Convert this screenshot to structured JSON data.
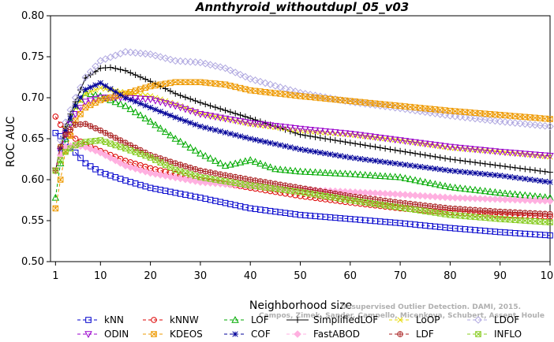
{
  "chart_data": {
    "type": "line",
    "title": "Annthyroid_withoutdupl_05_v03",
    "xlabel": "Neighborhood size",
    "ylabel": "ROC AUC",
    "xlim": [
      0,
      100
    ],
    "ylim": [
      0.5,
      0.8
    ],
    "x_ticks": [
      1,
      10,
      20,
      30,
      40,
      50,
      60,
      70,
      80,
      90,
      100
    ],
    "y_ticks": [
      "0.50",
      "0.55",
      "0.60",
      "0.65",
      "0.70",
      "0.75",
      "0.80"
    ],
    "grid": false,
    "legend_position": "bottom",
    "series": [
      {
        "name": "kNN",
        "color": "#0000cc",
        "marker": "square",
        "dash": "dashed",
        "points": [
          [
            1,
            0.657
          ],
          [
            2,
            0.653
          ],
          [
            3,
            0.646
          ],
          [
            5,
            0.633
          ],
          [
            7,
            0.62
          ],
          [
            10,
            0.609
          ],
          [
            15,
            0.599
          ],
          [
            20,
            0.59
          ],
          [
            30,
            0.578
          ],
          [
            40,
            0.565
          ],
          [
            50,
            0.557
          ],
          [
            60,
            0.552
          ],
          [
            70,
            0.547
          ],
          [
            80,
            0.541
          ],
          [
            90,
            0.536
          ],
          [
            100,
            0.532
          ]
        ]
      },
      {
        "name": "kNNW",
        "color": "#dd0000",
        "marker": "circle",
        "dash": "dashed",
        "points": [
          [
            1,
            0.677
          ],
          [
            2,
            0.667
          ],
          [
            3,
            0.66
          ],
          [
            5,
            0.65
          ],
          [
            7,
            0.643
          ],
          [
            10,
            0.635
          ],
          [
            15,
            0.623
          ],
          [
            20,
            0.614
          ],
          [
            30,
            0.6
          ],
          [
            40,
            0.59
          ],
          [
            50,
            0.58
          ],
          [
            60,
            0.572
          ],
          [
            70,
            0.565
          ],
          [
            80,
            0.56
          ],
          [
            90,
            0.557
          ],
          [
            100,
            0.555
          ]
        ]
      },
      {
        "name": "LOF",
        "color": "#00aa00",
        "marker": "triangle-up",
        "dash": "dashed",
        "points": [
          [
            1,
            0.578
          ],
          [
            2,
            0.62
          ],
          [
            3,
            0.65
          ],
          [
            5,
            0.69
          ],
          [
            7,
            0.706
          ],
          [
            10,
            0.702
          ],
          [
            15,
            0.69
          ],
          [
            20,
            0.671
          ],
          [
            25,
            0.65
          ],
          [
            30,
            0.632
          ],
          [
            35,
            0.617
          ],
          [
            40,
            0.624
          ],
          [
            45,
            0.613
          ],
          [
            50,
            0.61
          ],
          [
            60,
            0.607
          ],
          [
            70,
            0.603
          ],
          [
            80,
            0.591
          ],
          [
            90,
            0.584
          ],
          [
            100,
            0.578
          ]
        ]
      },
      {
        "name": "SimplifiedLOF",
        "color": "#000000",
        "marker": "plus",
        "dash": "solid",
        "points": [
          [
            1,
            0.611
          ],
          [
            2,
            0.64
          ],
          [
            3,
            0.665
          ],
          [
            5,
            0.695
          ],
          [
            7,
            0.724
          ],
          [
            10,
            0.736
          ],
          [
            12,
            0.737
          ],
          [
            15,
            0.733
          ],
          [
            20,
            0.72
          ],
          [
            25,
            0.705
          ],
          [
            30,
            0.694
          ],
          [
            40,
            0.675
          ],
          [
            50,
            0.655
          ],
          [
            60,
            0.645
          ],
          [
            70,
            0.635
          ],
          [
            80,
            0.625
          ],
          [
            90,
            0.617
          ],
          [
            100,
            0.609
          ]
        ]
      },
      {
        "name": "LoOP",
        "color": "#e6d800",
        "marker": "cross",
        "dash": "dashed",
        "points": [
          [
            1,
            0.612
          ],
          [
            2,
            0.64
          ],
          [
            3,
            0.662
          ],
          [
            5,
            0.688
          ],
          [
            7,
            0.705
          ],
          [
            10,
            0.712
          ],
          [
            15,
            0.706
          ],
          [
            20,
            0.702
          ],
          [
            25,
            0.692
          ],
          [
            30,
            0.681
          ],
          [
            40,
            0.668
          ],
          [
            50,
            0.66
          ],
          [
            60,
            0.655
          ],
          [
            70,
            0.648
          ],
          [
            80,
            0.639
          ],
          [
            90,
            0.634
          ],
          [
            100,
            0.628
          ]
        ]
      },
      {
        "name": "LDOF",
        "color": "#b0a8e0",
        "marker": "diamond",
        "dash": "dashed",
        "points": [
          [
            1,
            0.611
          ],
          [
            2,
            0.648
          ],
          [
            3,
            0.67
          ],
          [
            5,
            0.7
          ],
          [
            7,
            0.725
          ],
          [
            10,
            0.745
          ],
          [
            15,
            0.756
          ],
          [
            20,
            0.753
          ],
          [
            25,
            0.745
          ],
          [
            30,
            0.743
          ],
          [
            35,
            0.736
          ],
          [
            40,
            0.723
          ],
          [
            50,
            0.706
          ],
          [
            60,
            0.695
          ],
          [
            70,
            0.687
          ],
          [
            80,
            0.678
          ],
          [
            90,
            0.671
          ],
          [
            100,
            0.665
          ]
        ]
      },
      {
        "name": "ODIN",
        "color": "#9900cc",
        "marker": "triangle-down",
        "dash": "dashed",
        "points": [
          [
            1,
            0.611
          ],
          [
            2,
            0.635
          ],
          [
            3,
            0.655
          ],
          [
            5,
            0.68
          ],
          [
            7,
            0.695
          ],
          [
            10,
            0.7
          ],
          [
            15,
            0.7
          ],
          [
            20,
            0.698
          ],
          [
            25,
            0.69
          ],
          [
            30,
            0.68
          ],
          [
            40,
            0.669
          ],
          [
            50,
            0.662
          ],
          [
            60,
            0.656
          ],
          [
            70,
            0.648
          ],
          [
            80,
            0.64
          ],
          [
            90,
            0.634
          ],
          [
            100,
            0.629
          ]
        ]
      },
      {
        "name": "KDEOS",
        "color": "#ee9900",
        "marker": "square-x",
        "dash": "dashed",
        "points": [
          [
            1,
            0.565
          ],
          [
            2,
            0.6
          ],
          [
            3,
            0.635
          ],
          [
            5,
            0.672
          ],
          [
            7,
            0.688
          ],
          [
            10,
            0.697
          ],
          [
            15,
            0.705
          ],
          [
            20,
            0.714
          ],
          [
            25,
            0.719
          ],
          [
            30,
            0.719
          ],
          [
            35,
            0.716
          ],
          [
            40,
            0.709
          ],
          [
            50,
            0.702
          ],
          [
            60,
            0.696
          ],
          [
            70,
            0.69
          ],
          [
            80,
            0.684
          ],
          [
            90,
            0.679
          ],
          [
            100,
            0.674
          ]
        ]
      },
      {
        "name": "COF",
        "color": "#000099",
        "marker": "star",
        "dash": "dashed",
        "points": [
          [
            1,
            0.611
          ],
          [
            2,
            0.638
          ],
          [
            3,
            0.66
          ],
          [
            5,
            0.69
          ],
          [
            7,
            0.71
          ],
          [
            10,
            0.718
          ],
          [
            15,
            0.7
          ],
          [
            20,
            0.688
          ],
          [
            25,
            0.676
          ],
          [
            30,
            0.665
          ],
          [
            40,
            0.65
          ],
          [
            50,
            0.637
          ],
          [
            60,
            0.627
          ],
          [
            70,
            0.619
          ],
          [
            80,
            0.611
          ],
          [
            90,
            0.605
          ],
          [
            100,
            0.597
          ]
        ]
      },
      {
        "name": "FastABOD",
        "color": "#ffb0e0",
        "marker": "diamond-filled",
        "dash": "dashed",
        "points": [
          [
            1,
            0.611
          ],
          [
            2,
            0.63
          ],
          [
            3,
            0.64
          ],
          [
            5,
            0.642
          ],
          [
            7,
            0.64
          ],
          [
            10,
            0.633
          ],
          [
            15,
            0.617
          ],
          [
            20,
            0.608
          ],
          [
            30,
            0.597
          ],
          [
            40,
            0.592
          ],
          [
            50,
            0.588
          ],
          [
            60,
            0.585
          ],
          [
            70,
            0.582
          ],
          [
            80,
            0.578
          ],
          [
            90,
            0.576
          ],
          [
            100,
            0.574
          ]
        ]
      },
      {
        "name": "LDF",
        "color": "#aa2222",
        "marker": "circle-plus",
        "dash": "dashed",
        "points": [
          [
            1,
            0.611
          ],
          [
            2,
            0.64
          ],
          [
            3,
            0.655
          ],
          [
            5,
            0.667
          ],
          [
            7,
            0.668
          ],
          [
            10,
            0.66
          ],
          [
            15,
            0.645
          ],
          [
            20,
            0.63
          ],
          [
            25,
            0.62
          ],
          [
            30,
            0.611
          ],
          [
            40,
            0.6
          ],
          [
            50,
            0.59
          ],
          [
            60,
            0.58
          ],
          [
            70,
            0.572
          ],
          [
            80,
            0.565
          ],
          [
            90,
            0.561
          ],
          [
            100,
            0.558
          ]
        ]
      },
      {
        "name": "INFLO",
        "color": "#88cc22",
        "marker": "square-x",
        "dash": "dashed",
        "points": [
          [
            1,
            0.611
          ],
          [
            2,
            0.624
          ],
          [
            3,
            0.634
          ],
          [
            5,
            0.642
          ],
          [
            7,
            0.646
          ],
          [
            10,
            0.648
          ],
          [
            15,
            0.638
          ],
          [
            20,
            0.627
          ],
          [
            25,
            0.612
          ],
          [
            30,
            0.603
          ],
          [
            40,
            0.593
          ],
          [
            50,
            0.585
          ],
          [
            60,
            0.575
          ],
          [
            70,
            0.566
          ],
          [
            80,
            0.557
          ],
          [
            90,
            0.552
          ],
          [
            100,
            0.548
          ]
        ]
      }
    ]
  },
  "watermark": {
    "line1": "Unsupervised Outlier Detection. DAMI, 2015.",
    "line2": "Campos, Zimek, Sander, Campello, Micenkova, Schubert, Assent, Houle"
  }
}
